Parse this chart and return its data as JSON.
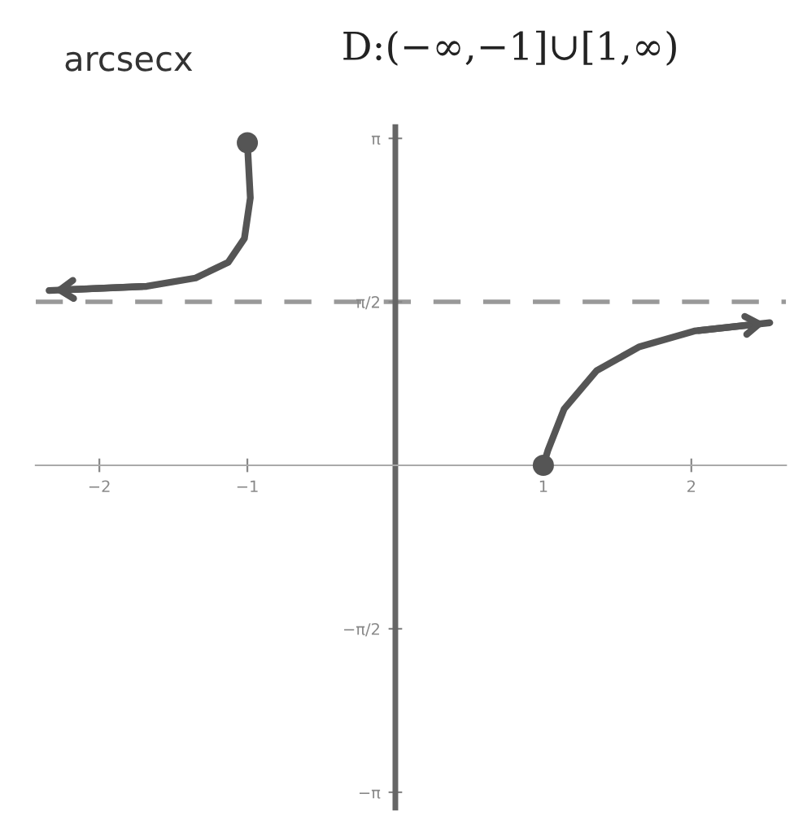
{
  "chart_data": {
    "type": "line",
    "title": "arcsecx",
    "annotations": [
      "D:(−∞,−1]∪[1,∞)"
    ],
    "series": [
      {
        "color": "#555555",
        "x": [
          -2.34,
          -1.68,
          -1.35,
          -1.13,
          -1.02,
          -0.98,
          -1
        ],
        "values": [
          1.68,
          1.72,
          1.8,
          1.95,
          2.18,
          2.57,
          3.1
        ]
      },
      {
        "color": "#555555",
        "x": [
          1,
          1.03,
          1.14,
          1.36,
          1.65,
          2.02,
          2.53
        ],
        "values": [
          0,
          0.14,
          0.54,
          0.91,
          1.14,
          1.29,
          1.37
        ]
      },
      {
        "type": "scatter",
        "color": "#555555",
        "x": [
          -1,
          1
        ],
        "values": [
          3.1,
          0
        ],
        "marker": "circle"
      }
    ],
    "xlim": [
      -2.43,
      2.64
    ],
    "ylim": [
      -3.29,
      3.25
    ],
    "xticks": [
      {
        "value": -2,
        "label": "−2"
      },
      {
        "value": -1,
        "label": "−1"
      },
      1,
      2
    ],
    "yticks": [
      {
        "value": -3.1416,
        "label": "−π"
      },
      {
        "value": -1.5708,
        "label": "−π/2"
      },
      {
        "value": 1.5708,
        "label": "π/2"
      },
      {
        "value": 3.1416,
        "label": "π"
      }
    ],
    "ref_lines": [
      {
        "axis": "y",
        "value": 1.5708,
        "color": "#999999",
        "line_style": "dashed"
      }
    ],
    "grid": false,
    "legend": false
  }
}
